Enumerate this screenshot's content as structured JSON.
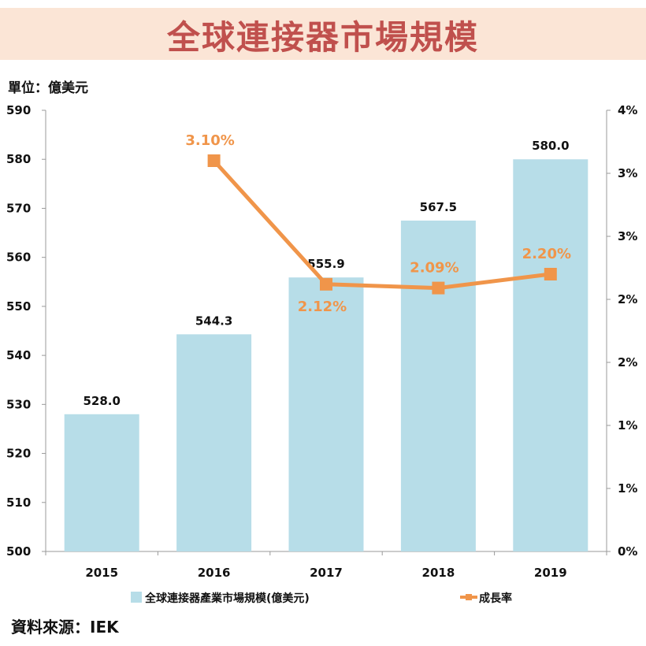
{
  "title": "全球連接器市場規模",
  "unit_label": "單位：億美元",
  "source_label": "資料來源：IEK",
  "colors": {
    "bar": "#b7dde8",
    "line": "#f0954a",
    "title": "#c0504d",
    "title_bg": "#fbe5d6"
  },
  "chart_data": {
    "type": "bar",
    "categories": [
      "2015",
      "2016",
      "2017",
      "2018",
      "2019"
    ],
    "series": [
      {
        "name": "全球連接器產業市場規模(億美元)",
        "type": "bar",
        "axis": "left",
        "values": [
          528.0,
          544.3,
          555.9,
          567.5,
          580.0
        ],
        "labels": [
          "528.0",
          "544.3",
          "555.9",
          "567.5",
          "580.0"
        ]
      },
      {
        "name": "成長率",
        "type": "line",
        "axis": "right",
        "values": [
          null,
          3.1,
          2.12,
          2.09,
          2.2
        ],
        "labels": [
          "",
          "3.10%",
          "2.12%",
          "2.09%",
          "2.20%"
        ]
      }
    ],
    "y_left": {
      "min": 500,
      "max": 590,
      "ticks": [
        "500",
        "510",
        "520",
        "530",
        "540",
        "550",
        "560",
        "570",
        "580",
        "590"
      ]
    },
    "y_right": {
      "min": 0,
      "max": 3.5,
      "ticks": [
        "0%",
        "1%",
        "1%",
        "2%",
        "2%",
        "3%",
        "3%",
        "4%"
      ]
    },
    "grid": false,
    "legend_position": "bottom"
  }
}
